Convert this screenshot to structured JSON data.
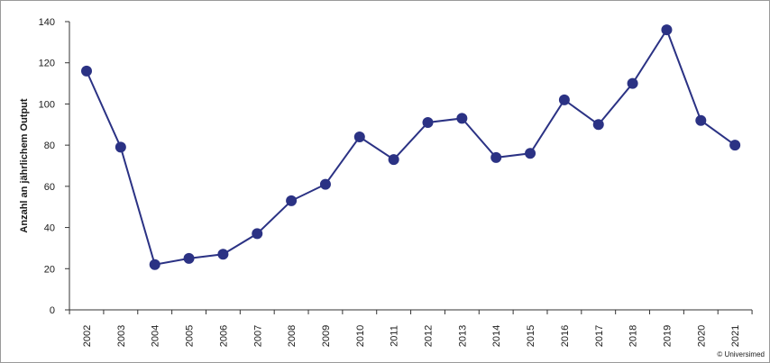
{
  "chart_data": {
    "type": "line",
    "title": "",
    "xlabel": "",
    "ylabel": "Anzahl an jährlichem Output",
    "categories": [
      "2002",
      "2003",
      "2004",
      "2005",
      "2006",
      "2007",
      "2008",
      "2009",
      "2010",
      "2011",
      "2012",
      "2013",
      "2014",
      "2015",
      "2016",
      "2017",
      "2018",
      "2019",
      "2020",
      "2021"
    ],
    "series": [
      {
        "values": [
          116,
          79,
          22,
          25,
          27,
          37,
          53,
          61,
          84,
          73,
          91,
          93,
          74,
          76,
          102,
          90,
          110,
          136,
          92,
          80
        ]
      }
    ],
    "ylim": [
      0,
      140
    ],
    "yticks": [
      0,
      20,
      40,
      60,
      80,
      100,
      120,
      140
    ],
    "grid": false,
    "line_color": "#2b3284",
    "marker_color": "#2b3284"
  },
  "credit": "© Universimed"
}
